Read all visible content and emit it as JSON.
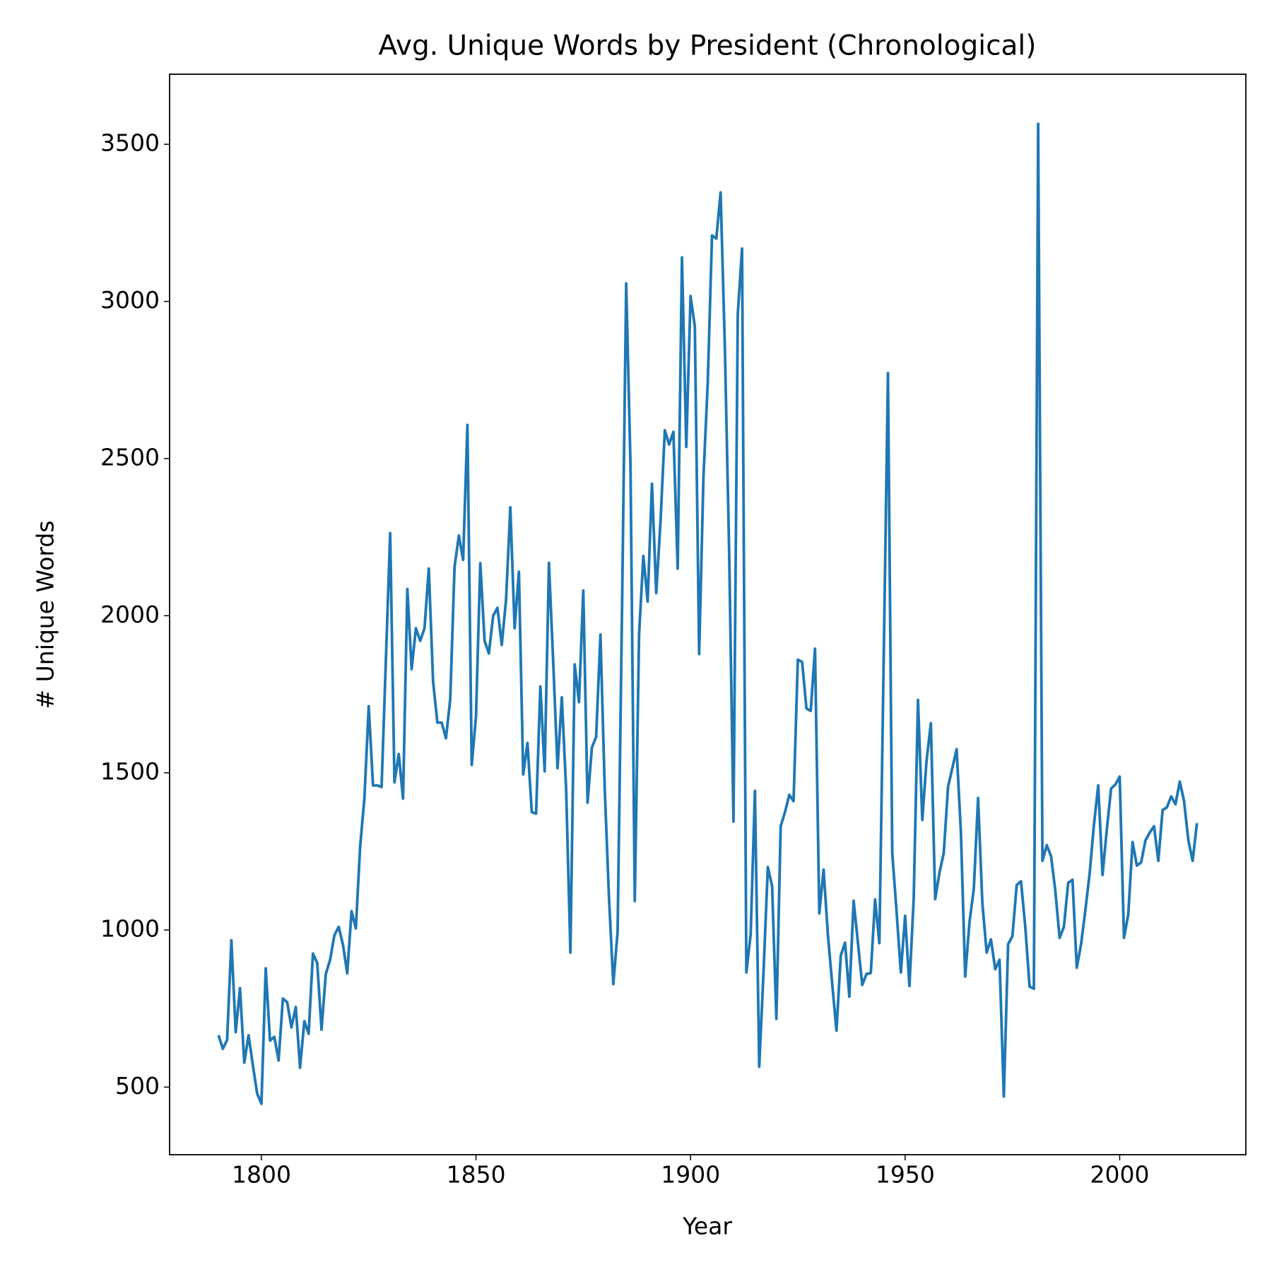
{
  "chart_data": {
    "type": "line",
    "title": "Avg. Unique Words by President (Chronological)",
    "xlabel": "Year",
    "ylabel": "# Unique Words",
    "color": "#1f77b4",
    "xlim": [
      1778.6,
      2029.4
    ],
    "xticks": [
      1800,
      1850,
      1900,
      1950,
      2000
    ],
    "ylim": [
      285,
      3723
    ],
    "yticks": [
      500,
      1000,
      1500,
      2000,
      2500,
      3000,
      3500
    ],
    "x": [
      1790,
      1791,
      1792,
      1793,
      1794,
      1795,
      1796,
      1797,
      1798,
      1799,
      1800,
      1801,
      1802,
      1803,
      1804,
      1805,
      1806,
      1807,
      1808,
      1809,
      1810,
      1811,
      1812,
      1813,
      1814,
      1815,
      1816,
      1817,
      1818,
      1819,
      1820,
      1821,
      1822,
      1823,
      1824,
      1825,
      1826,
      1827,
      1828,
      1829,
      1830,
      1831,
      1832,
      1833,
      1834,
      1835,
      1836,
      1837,
      1838,
      1839,
      1840,
      1841,
      1842,
      1843,
      1844,
      1845,
      1846,
      1847,
      1848,
      1849,
      1850,
      1851,
      1852,
      1853,
      1854,
      1855,
      1856,
      1857,
      1858,
      1859,
      1860,
      1861,
      1862,
      1863,
      1864,
      1865,
      1866,
      1867,
      1868,
      1869,
      1870,
      1871,
      1872,
      1873,
      1874,
      1875,
      1876,
      1877,
      1878,
      1879,
      1880,
      1881,
      1882,
      1883,
      1884,
      1885,
      1886,
      1887,
      1888,
      1889,
      1890,
      1891,
      1892,
      1893,
      1894,
      1895,
      1896,
      1897,
      1898,
      1899,
      1900,
      1901,
      1902,
      1903,
      1904,
      1905,
      1906,
      1907,
      1908,
      1909,
      1910,
      1911,
      1912,
      1913,
      1914,
      1915,
      1916,
      1917,
      1918,
      1919,
      1920,
      1921,
      1922,
      1923,
      1924,
      1925,
      1926,
      1927,
      1928,
      1929,
      1930,
      1931,
      1932,
      1933,
      1934,
      1935,
      1936,
      1937,
      1938,
      1939,
      1940,
      1941,
      1942,
      1943,
      1944,
      1945,
      1946,
      1947,
      1948,
      1949,
      1950,
      1951,
      1952,
      1953,
      1954,
      1955,
      1956,
      1957,
      1958,
      1959,
      1960,
      1961,
      1962,
      1963,
      1964,
      1965,
      1966,
      1967,
      1968,
      1969,
      1970,
      1971,
      1972,
      1973,
      1974,
      1975,
      1976,
      1977,
      1978,
      1979,
      1980,
      1981,
      1982,
      1983,
      1984,
      1985,
      1986,
      1987,
      1988,
      1989,
      1990,
      1991,
      1992,
      1993,
      1994,
      1995,
      1996,
      1997,
      1998,
      1999,
      2000,
      2001,
      2002,
      2003,
      2004,
      2005,
      2006,
      2007,
      2008,
      2009,
      2010,
      2011,
      2012,
      2013,
      2014,
      2015,
      2016,
      2017,
      2018
    ],
    "values": [
      665,
      622,
      650,
      967,
      675,
      815,
      578,
      665,
      570,
      480,
      447,
      878,
      648,
      660,
      585,
      782,
      770,
      690,
      755,
      562,
      710,
      670,
      925,
      895,
      683,
      860,
      905,
      983,
      1010,
      953,
      862,
      1060,
      1005,
      1265,
      1420,
      1712,
      1460,
      1460,
      1455,
      1860,
      2263,
      1470,
      1560,
      1418,
      2085,
      1830,
      1960,
      1920,
      1960,
      2150,
      1790,
      1660,
      1660,
      1610,
      1735,
      2155,
      2255,
      2178,
      2607,
      1525,
      1680,
      2167,
      1920,
      1880,
      2000,
      2025,
      1907,
      2050,
      2345,
      1960,
      2140,
      1495,
      1595,
      1375,
      1370,
      1775,
      1505,
      2168,
      1850,
      1515,
      1740,
      1450,
      928,
      1845,
      1725,
      2080,
      1405,
      1580,
      1615,
      1940,
      1450,
      1100,
      828,
      995,
      1990,
      3057,
      2480,
      1092,
      1940,
      2190,
      2045,
      2420,
      2072,
      2300,
      2590,
      2545,
      2585,
      2150,
      3140,
      2537,
      3017,
      2920,
      1878,
      2440,
      2740,
      3210,
      3200,
      3347,
      2850,
      2200,
      1345,
      2960,
      3168,
      865,
      985,
      1443,
      565,
      865,
      1200,
      1140,
      717,
      1330,
      1375,
      1430,
      1410,
      1860,
      1853,
      1705,
      1697,
      1895,
      1053,
      1192,
      985,
      830,
      680,
      918,
      960,
      788,
      1093,
      960,
      825,
      860,
      863,
      1097,
      958,
      1855,
      2772,
      1245,
      1060,
      865,
      1045,
      822,
      1100,
      1732,
      1350,
      1540,
      1658,
      1098,
      1182,
      1245,
      1455,
      1515,
      1575,
      1310,
      852,
      1025,
      1130,
      1420,
      1085,
      928,
      970,
      875,
      905,
      470,
      955,
      980,
      1143,
      1155,
      1010,
      820,
      813,
      3565,
      1220,
      1270,
      1235,
      1125,
      975,
      1010,
      1150,
      1160,
      880,
      955,
      1063,
      1180,
      1335,
      1460,
      1175,
      1320,
      1450,
      1463,
      1488,
      975,
      1050,
      1280,
      1205,
      1215,
      1285,
      1310,
      1330,
      1220,
      1382,
      1390,
      1425,
      1400,
      1472,
      1410,
      1285,
      1220,
      1340
    ]
  }
}
